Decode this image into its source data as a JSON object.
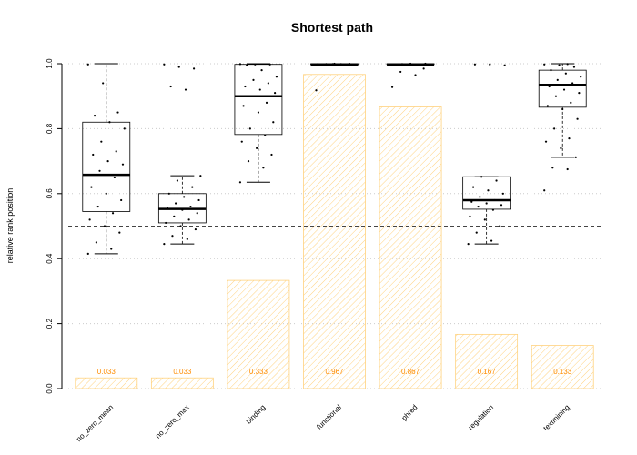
{
  "chart_data": {
    "type": "bar",
    "title": "Shortest path",
    "xlabel": "",
    "ylabel": "relative rank position",
    "ylim": [
      0,
      1
    ],
    "yticks": [
      "0.0",
      "0.2",
      "0.4",
      "0.6",
      "0.8",
      "1.0"
    ],
    "grid": true,
    "reference_line": 0.5,
    "categories": [
      "no_zero_mean",
      "no_zero_max",
      "binding",
      "functional",
      "phred",
      "regulation",
      "textmining"
    ],
    "bar_values": [
      0.033,
      0.033,
      0.333,
      0.967,
      0.867,
      0.167,
      0.133
    ],
    "bar_labels": [
      "0.033",
      "0.033",
      "0.333",
      "0.967",
      "0.867",
      "0.167",
      "0.133"
    ],
    "bar_color": "#FFD27F",
    "bar_label_color": "#FF8C00",
    "boxes": [
      {
        "min": 0.415,
        "q1": 0.545,
        "median": 0.658,
        "q3": 0.82,
        "max": 1.0
      },
      {
        "min": 0.445,
        "q1": 0.51,
        "median": 0.553,
        "q3": 0.6,
        "max": 0.655
      },
      {
        "min": 0.635,
        "q1": 0.782,
        "median": 0.9,
        "q3": 0.998,
        "max": 1.0
      },
      {
        "min": 0.998,
        "q1": 0.998,
        "median": 0.998,
        "q3": 1.0,
        "max": 1.0
      },
      {
        "min": 0.998,
        "q1": 0.998,
        "median": 0.998,
        "q3": 1.0,
        "max": 1.0
      },
      {
        "min": 0.445,
        "q1": 0.552,
        "median": 0.58,
        "q3": 0.652,
        "max": 0.652
      },
      {
        "min": 0.712,
        "q1": 0.866,
        "median": 0.935,
        "q3": 0.98,
        "max": 1.0
      }
    ],
    "points": [
      [
        0.415,
        0.43,
        0.45,
        0.48,
        0.5,
        0.52,
        0.54,
        0.56,
        0.58,
        0.6,
        0.62,
        0.65,
        0.67,
        0.69,
        0.7,
        0.72,
        0.73,
        0.76,
        0.8,
        0.82,
        0.84,
        0.85,
        0.94,
        0.998
      ],
      [
        0.445,
        0.46,
        0.47,
        0.49,
        0.5,
        0.51,
        0.52,
        0.53,
        0.54,
        0.55,
        0.555,
        0.56,
        0.57,
        0.58,
        0.59,
        0.6,
        0.62,
        0.64,
        0.655,
        0.92,
        0.93,
        0.985,
        0.99,
        0.998
      ],
      [
        0.635,
        0.68,
        0.7,
        0.72,
        0.74,
        0.76,
        0.78,
        0.8,
        0.82,
        0.85,
        0.87,
        0.88,
        0.9,
        0.91,
        0.92,
        0.93,
        0.94,
        0.95,
        0.96,
        0.98,
        0.995,
        0.998,
        0.998,
        0.999
      ],
      [
        0.918,
        0.998,
        0.998,
        0.998,
        0.999,
        0.999,
        0.999,
        0.999,
        1.0,
        1.0
      ],
      [
        0.928,
        0.965,
        0.975,
        0.985,
        0.995,
        0.998,
        0.998,
        0.999,
        1.0,
        1.0
      ],
      [
        0.445,
        0.455,
        0.48,
        0.5,
        0.52,
        0.53,
        0.55,
        0.56,
        0.565,
        0.57,
        0.575,
        0.58,
        0.59,
        0.6,
        0.61,
        0.62,
        0.64,
        0.652,
        0.995,
        0.998,
        0.998
      ],
      [
        0.61,
        0.675,
        0.68,
        0.712,
        0.74,
        0.76,
        0.77,
        0.8,
        0.83,
        0.86,
        0.87,
        0.88,
        0.9,
        0.91,
        0.92,
        0.93,
        0.94,
        0.95,
        0.96,
        0.97,
        0.98,
        0.99,
        0.995,
        0.998,
        0.999
      ]
    ]
  }
}
